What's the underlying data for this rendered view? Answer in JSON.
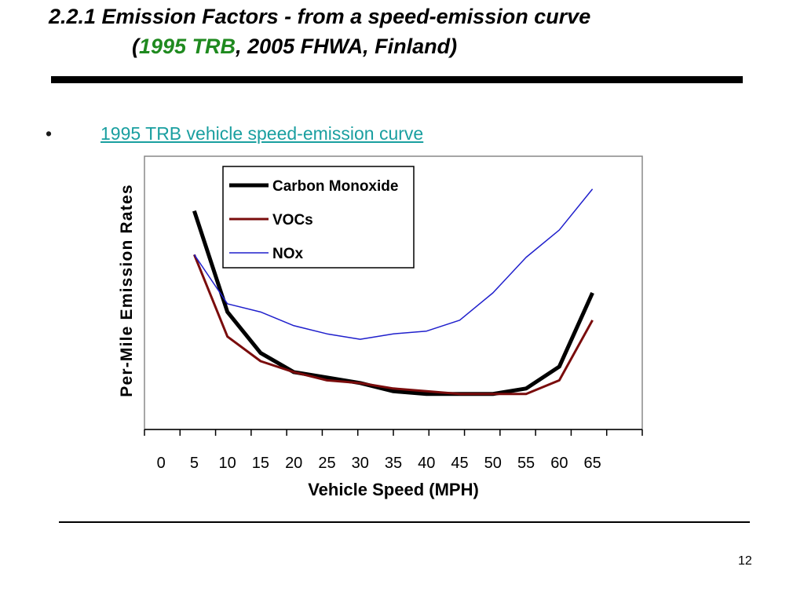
{
  "slide": {
    "title_line1": "2.2.1  Emission Factors - from a speed-emission curve",
    "title_line2_open": "(",
    "title_line2_highlight": "1995 TRB",
    "title_line2_rest": ", 2005 FHWA, Finland)",
    "bullet_symbol": "•",
    "bullet_text": "1995 TRB vehicle speed-emission curve",
    "page_number": "12",
    "colors": {
      "title_highlight": "#1f8a1f",
      "bullet_link": "#1a9fa0"
    }
  },
  "chart_data": {
    "type": "line",
    "title": "",
    "xlabel": "Vehicle Speed (MPH)",
    "ylabel": "Per-Mile Emission Rates",
    "x_ticks": [
      0,
      5,
      10,
      15,
      20,
      25,
      30,
      35,
      40,
      45,
      50,
      55,
      60,
      65
    ],
    "xlim": [
      -2.5,
      72.5
    ],
    "y_relative_range": [
      0,
      1
    ],
    "y_axis_values_printed": false,
    "legend_position": "top-center, inside plot",
    "grid": false,
    "x": [
      5,
      10,
      15,
      20,
      25,
      30,
      35,
      40,
      45,
      50,
      55,
      60,
      65
    ],
    "series": [
      {
        "name": "Carbon Monoxide",
        "color": "#000000",
        "values": [
          0.8,
          0.43,
          0.28,
          0.21,
          0.19,
          0.17,
          0.14,
          0.13,
          0.13,
          0.13,
          0.15,
          0.23,
          0.5
        ]
      },
      {
        "name": "VOCs",
        "color": "#7a0c0c",
        "values": [
          0.64,
          0.34,
          0.25,
          0.21,
          0.18,
          0.17,
          0.15,
          0.14,
          0.13,
          0.13,
          0.13,
          0.18,
          0.4
        ]
      },
      {
        "name": "NOx",
        "color": "#1f1fcc",
        "values": [
          0.64,
          0.46,
          0.43,
          0.38,
          0.35,
          0.33,
          0.35,
          0.36,
          0.4,
          0.5,
          0.63,
          0.73,
          0.88
        ]
      }
    ]
  }
}
